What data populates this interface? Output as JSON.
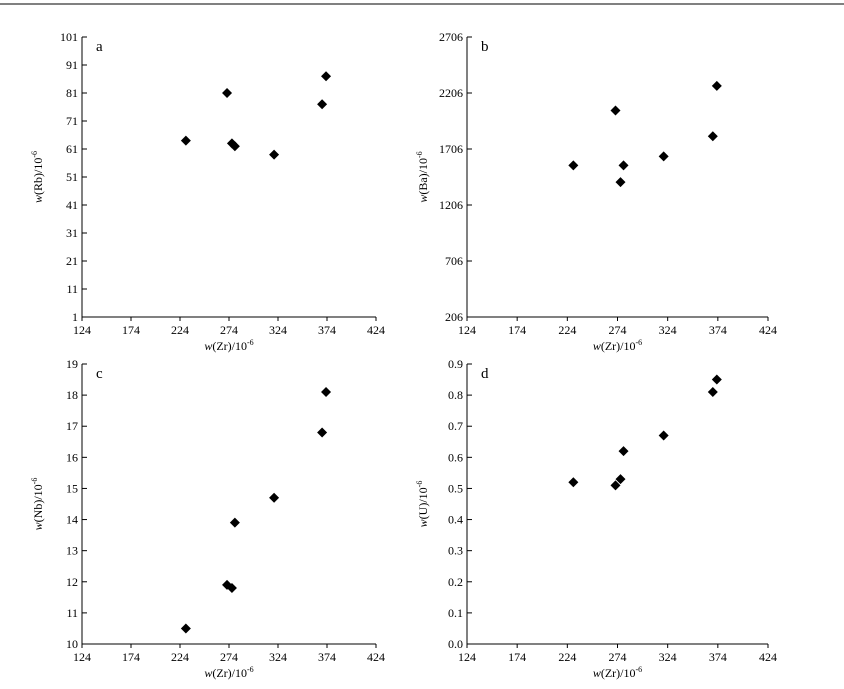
{
  "chart_data": [
    {
      "type": "scatter",
      "panel_label": "a",
      "x": [
        230,
        272,
        277,
        280,
        320,
        369,
        373
      ],
      "y": [
        64,
        81,
        63,
        62,
        59,
        77,
        87
      ],
      "xlabel_main": "w",
      "xlabel_rest": "(Zr)/10",
      "xlabel_sup": "-6",
      "ylabel_main": "w",
      "ylabel_rest": "(Rb)/10",
      "ylabel_sup": "-6",
      "xlim": [
        124,
        424
      ],
      "ylim": [
        1,
        101
      ],
      "xticks": [
        "124",
        "174",
        "224",
        "274",
        "324",
        "374",
        "424"
      ],
      "yticks": [
        "1",
        "11",
        "21",
        "31",
        "41",
        "51",
        "61",
        "71",
        "81",
        "91",
        "101"
      ],
      "grid": false
    },
    {
      "type": "scatter",
      "panel_label": "b",
      "x": [
        230,
        272,
        277,
        280,
        320,
        369,
        373
      ],
      "y": [
        1560,
        2050,
        1410,
        1560,
        1640,
        1820,
        2270
      ],
      "xlabel_main": "w",
      "xlabel_rest": "(Zr)/10",
      "xlabel_sup": "-6",
      "ylabel_main": "w",
      "ylabel_rest": "(Ba)/10",
      "ylabel_sup": "-6",
      "xlim": [
        124,
        424
      ],
      "ylim": [
        206,
        2706
      ],
      "xticks": [
        "124",
        "174",
        "224",
        "274",
        "324",
        "374",
        "424"
      ],
      "yticks": [
        "206",
        "706",
        "1206",
        "1706",
        "2206",
        "2706"
      ],
      "grid": false
    },
    {
      "type": "scatter",
      "panel_label": "c",
      "x": [
        230,
        272,
        277,
        280,
        320,
        369,
        373
      ],
      "y": [
        10.5,
        11.9,
        11.8,
        13.9,
        14.7,
        16.8,
        18.1
      ],
      "xlabel_main": "w",
      "xlabel_rest": "(Zr)/10",
      "xlabel_sup": "-6",
      "ylabel_main": "w",
      "ylabel_rest": "(Nb)/10",
      "ylabel_sup": "-6",
      "xlim": [
        124,
        424
      ],
      "ylim": [
        10,
        19
      ],
      "xticks": [
        "124",
        "174",
        "224",
        "274",
        "324",
        "374",
        "424"
      ],
      "yticks": [
        "10",
        "11",
        "12",
        "13",
        "14",
        "15",
        "16",
        "17",
        "18",
        "19"
      ],
      "grid": false
    },
    {
      "type": "scatter",
      "panel_label": "d",
      "x": [
        230,
        272,
        277,
        280,
        320,
        369,
        373
      ],
      "y": [
        0.52,
        0.51,
        0.53,
        0.62,
        0.67,
        0.81,
        0.85
      ],
      "xlabel_main": "w",
      "xlabel_rest": "(Zr)/10",
      "xlabel_sup": "-6",
      "ylabel_main": "w",
      "ylabel_rest": "(U)/10",
      "ylabel_sup": "-6",
      "xlim": [
        124,
        424
      ],
      "ylim": [
        0.0,
        0.9
      ],
      "xticks": [
        "124",
        "174",
        "224",
        "274",
        "324",
        "374",
        "424"
      ],
      "yticks": [
        "0.0",
        "0.1",
        "0.2",
        "0.3",
        "0.4",
        "0.5",
        "0.6",
        "0.7",
        "0.8",
        "0.9"
      ],
      "grid": false
    }
  ]
}
